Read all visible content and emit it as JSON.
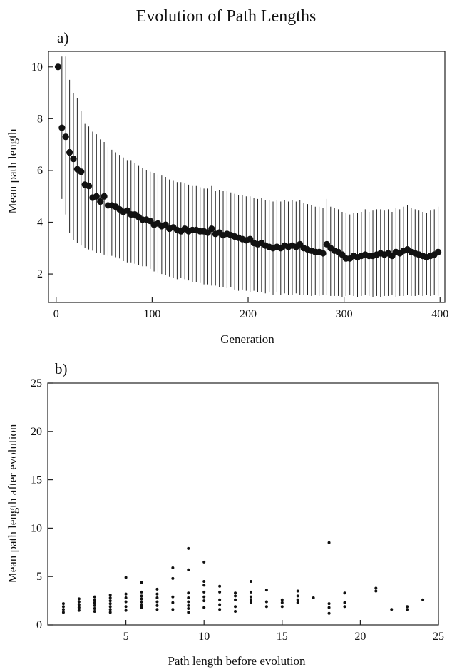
{
  "figure": {
    "title": "Evolution of Path Lengths"
  },
  "chart_data": [
    {
      "type": "scatter",
      "panel_label": "a)",
      "xlabel": "Generation",
      "ylabel": "Mean path length",
      "xlim": [
        -8,
        405
      ],
      "ylim": [
        0.9,
        10.6
      ],
      "x_ticks": [
        0,
        100,
        200,
        300,
        400
      ],
      "y_ticks": [
        2,
        4,
        6,
        8,
        10
      ],
      "error_bars": true,
      "grid": false,
      "x": [
        2,
        6,
        10,
        14,
        18,
        22,
        26,
        30,
        34,
        38,
        42,
        46,
        50,
        54,
        58,
        62,
        66,
        70,
        74,
        78,
        82,
        86,
        90,
        94,
        98,
        102,
        106,
        110,
        114,
        118,
        122,
        126,
        130,
        134,
        138,
        142,
        146,
        150,
        154,
        158,
        162,
        166,
        170,
        174,
        178,
        182,
        186,
        190,
        194,
        198,
        202,
        206,
        210,
        214,
        218,
        222,
        226,
        230,
        234,
        238,
        242,
        246,
        250,
        254,
        258,
        262,
        266,
        270,
        274,
        278,
        282,
        286,
        290,
        294,
        298,
        302,
        306,
        310,
        314,
        318,
        322,
        326,
        330,
        334,
        338,
        342,
        346,
        350,
        354,
        358,
        362,
        366,
        370,
        374,
        378,
        382,
        386,
        390,
        394,
        398
      ],
      "y": [
        10.0,
        7.65,
        7.3,
        6.7,
        6.45,
        6.05,
        5.95,
        5.45,
        5.4,
        4.95,
        5.0,
        4.8,
        5.0,
        4.65,
        4.65,
        4.6,
        4.5,
        4.4,
        4.45,
        4.3,
        4.3,
        4.2,
        4.1,
        4.1,
        4.05,
        3.9,
        3.95,
        3.85,
        3.9,
        3.75,
        3.8,
        3.7,
        3.65,
        3.75,
        3.65,
        3.7,
        3.7,
        3.65,
        3.65,
        3.6,
        3.75,
        3.55,
        3.6,
        3.5,
        3.55,
        3.5,
        3.45,
        3.4,
        3.35,
        3.3,
        3.35,
        3.2,
        3.15,
        3.2,
        3.1,
        3.05,
        3.0,
        3.05,
        3.0,
        3.1,
        3.05,
        3.1,
        3.05,
        3.15,
        3.0,
        2.95,
        2.9,
        2.85,
        2.85,
        2.8,
        3.15,
        3.0,
        2.9,
        2.85,
        2.75,
        2.6,
        2.6,
        2.7,
        2.65,
        2.7,
        2.75,
        2.7,
        2.7,
        2.75,
        2.8,
        2.75,
        2.8,
        2.7,
        2.85,
        2.8,
        2.9,
        2.95,
        2.85,
        2.8,
        2.75,
        2.7,
        2.65,
        2.7,
        2.75,
        2.85
      ],
      "y_low": [
        null,
        4.9,
        4.3,
        3.6,
        3.3,
        3.2,
        3.1,
        3.0,
        2.95,
        2.9,
        2.8,
        2.8,
        2.75,
        2.7,
        2.7,
        2.65,
        2.6,
        2.5,
        2.45,
        2.45,
        2.4,
        2.35,
        2.3,
        2.3,
        2.2,
        2.1,
        2.05,
        2.0,
        1.95,
        1.9,
        1.85,
        1.8,
        1.85,
        1.8,
        1.75,
        1.7,
        1.7,
        1.65,
        1.6,
        1.6,
        1.55,
        1.55,
        1.5,
        1.5,
        1.45,
        1.5,
        1.4,
        1.35,
        1.4,
        1.35,
        1.3,
        1.35,
        1.3,
        1.3,
        1.25,
        1.3,
        1.2,
        1.3,
        1.2,
        1.25,
        1.2,
        1.2,
        1.25,
        1.2,
        1.2,
        1.2,
        1.15,
        1.2,
        1.15,
        1.2,
        1.2,
        1.15,
        1.15,
        1.15,
        1.1,
        1.15,
        1.2,
        1.15,
        1.1,
        1.15,
        1.2,
        1.15,
        1.1,
        1.15,
        1.1,
        1.15,
        1.15,
        1.2,
        1.1,
        1.15,
        1.15,
        1.2,
        1.15,
        1.15,
        1.2,
        1.15,
        1.2,
        1.15,
        1.2,
        1.15
      ],
      "y_high": [
        null,
        10.4,
        10.4,
        9.5,
        9.0,
        8.8,
        8.3,
        7.8,
        7.7,
        7.5,
        7.4,
        7.2,
        7.1,
        6.9,
        6.8,
        6.7,
        6.6,
        6.5,
        6.4,
        6.4,
        6.3,
        6.2,
        6.1,
        6.0,
        5.95,
        5.9,
        5.85,
        5.8,
        5.75,
        5.65,
        5.6,
        5.55,
        5.55,
        5.5,
        5.45,
        5.4,
        5.4,
        5.35,
        5.3,
        5.3,
        5.4,
        5.2,
        5.25,
        5.2,
        5.2,
        5.15,
        5.1,
        5.05,
        5.05,
        5.0,
        5.0,
        4.95,
        4.9,
        4.95,
        4.85,
        4.85,
        4.8,
        4.85,
        4.8,
        4.85,
        4.8,
        4.85,
        4.8,
        4.85,
        4.75,
        4.7,
        4.65,
        4.6,
        4.6,
        4.55,
        4.9,
        4.6,
        4.55,
        4.5,
        4.4,
        4.35,
        4.3,
        4.35,
        4.35,
        4.4,
        4.5,
        4.4,
        4.45,
        4.5,
        4.5,
        4.45,
        4.5,
        4.4,
        4.55,
        4.5,
        4.6,
        4.65,
        4.55,
        4.5,
        4.45,
        4.4,
        4.35,
        4.45,
        4.5,
        4.6
      ]
    },
    {
      "type": "scatter",
      "panel_label": "b)",
      "xlabel": "Path length before evolution",
      "ylabel": "Mean path length after evolution",
      "xlim": [
        0,
        25
      ],
      "ylim": [
        0,
        25
      ],
      "x_ticks": [
        5,
        10,
        15,
        20,
        25
      ],
      "y_ticks": [
        0,
        5,
        10,
        15,
        20,
        25
      ],
      "grid": false,
      "points": [
        [
          1,
          1.3
        ],
        [
          1,
          1.6
        ],
        [
          1,
          1.9
        ],
        [
          1,
          2.2
        ],
        [
          2,
          1.5
        ],
        [
          2,
          1.8
        ],
        [
          2,
          2.1
        ],
        [
          2,
          2.4
        ],
        [
          2,
          2.7
        ],
        [
          3,
          1.4
        ],
        [
          3,
          1.7
        ],
        [
          3,
          2.0
        ],
        [
          3,
          2.3
        ],
        [
          3,
          2.6
        ],
        [
          3,
          2.9
        ],
        [
          4,
          1.3
        ],
        [
          4,
          1.6
        ],
        [
          4,
          1.9
        ],
        [
          4,
          2.2
        ],
        [
          4,
          2.5
        ],
        [
          4,
          2.8
        ],
        [
          4,
          3.1
        ],
        [
          5,
          1.5
        ],
        [
          5,
          1.9
        ],
        [
          5,
          2.4
        ],
        [
          5,
          2.8
        ],
        [
          5,
          3.2
        ],
        [
          5,
          4.9
        ],
        [
          6,
          1.8
        ],
        [
          6,
          2.1
        ],
        [
          6,
          2.4
        ],
        [
          6,
          2.7
        ],
        [
          6,
          3.0
        ],
        [
          6,
          3.4
        ],
        [
          6,
          4.4
        ],
        [
          7,
          1.6
        ],
        [
          7,
          2.0
        ],
        [
          7,
          2.4
        ],
        [
          7,
          2.8
        ],
        [
          7,
          3.2
        ],
        [
          7,
          3.7
        ],
        [
          8,
          1.6
        ],
        [
          8,
          2.3
        ],
        [
          8,
          2.9
        ],
        [
          8,
          4.8
        ],
        [
          8,
          5.9
        ],
        [
          9,
          1.3
        ],
        [
          9,
          1.7
        ],
        [
          9,
          2.0
        ],
        [
          9,
          2.4
        ],
        [
          9,
          2.8
        ],
        [
          9,
          3.3
        ],
        [
          9,
          5.7
        ],
        [
          9,
          7.9
        ],
        [
          10,
          1.8
        ],
        [
          10,
          2.5
        ],
        [
          10,
          2.9
        ],
        [
          10,
          3.4
        ],
        [
          10,
          4.1
        ],
        [
          10,
          4.5
        ],
        [
          10,
          6.5
        ],
        [
          11,
          1.6
        ],
        [
          11,
          2.1
        ],
        [
          11,
          2.6
        ],
        [
          11,
          3.4
        ],
        [
          11,
          4.0
        ],
        [
          12,
          1.4
        ],
        [
          12,
          1.9
        ],
        [
          12,
          2.6
        ],
        [
          12,
          3.0
        ],
        [
          12,
          3.3
        ],
        [
          13,
          2.3
        ],
        [
          13,
          2.6
        ],
        [
          13,
          2.9
        ],
        [
          13,
          3.4
        ],
        [
          13,
          4.5
        ],
        [
          14,
          1.9
        ],
        [
          14,
          2.4
        ],
        [
          14,
          3.6
        ],
        [
          15,
          1.9
        ],
        [
          15,
          2.3
        ],
        [
          15,
          2.6
        ],
        [
          16,
          2.3
        ],
        [
          16,
          2.6
        ],
        [
          16,
          3.0
        ],
        [
          16,
          3.5
        ],
        [
          17,
          2.8
        ],
        [
          18,
          1.2
        ],
        [
          18,
          1.8
        ],
        [
          18,
          2.2
        ],
        [
          18,
          8.5
        ],
        [
          19,
          1.9
        ],
        [
          19,
          2.3
        ],
        [
          19,
          3.3
        ],
        [
          21,
          3.5
        ],
        [
          21,
          3.8
        ],
        [
          22,
          1.6
        ],
        [
          23,
          1.6
        ],
        [
          23,
          1.9
        ],
        [
          24,
          2.6
        ]
      ]
    }
  ]
}
